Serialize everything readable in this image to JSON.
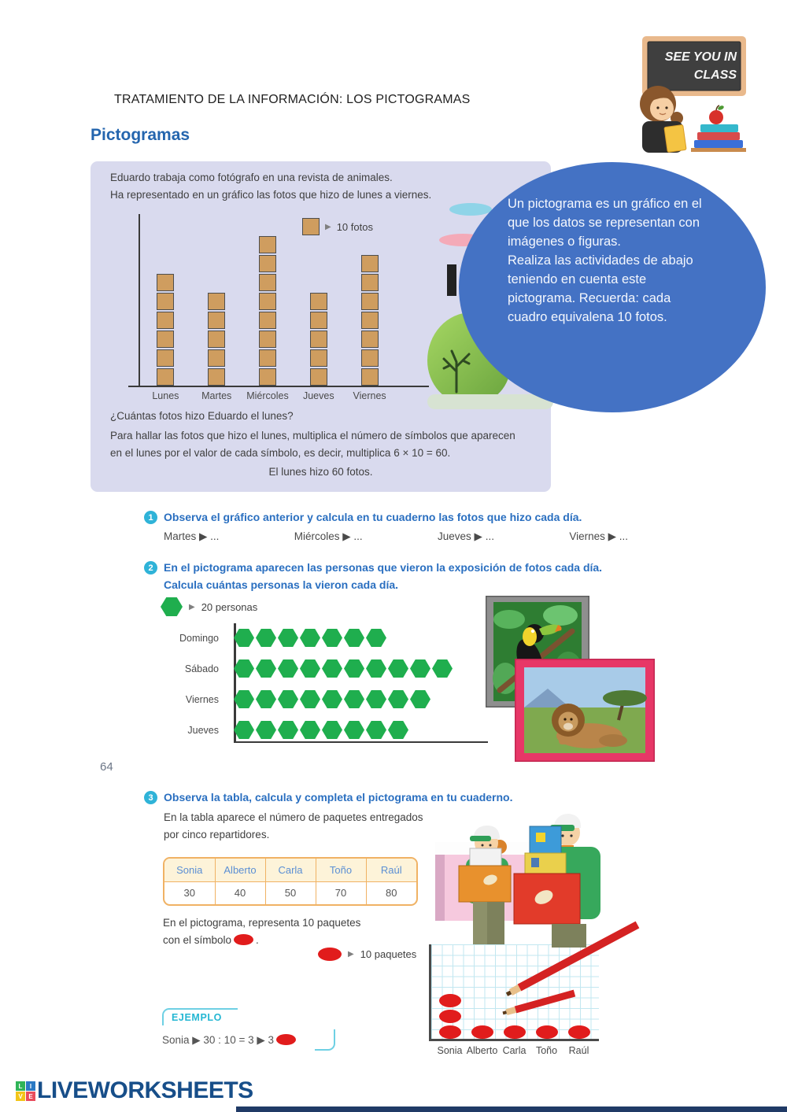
{
  "header": {
    "title": "TRATAMIENTO DE LA INFORMACIÓN: LOS PICTOGRAMAS",
    "section_heading": "Pictogramas",
    "page_number": "64"
  },
  "badge": {
    "line1": "SEE YOU IN",
    "line2": "CLASS"
  },
  "intro_panel": {
    "line1": "Eduardo trabaja como fotógrafo en una revista de animales.",
    "line2": "Ha representado en un gráfico las fotos que hizo de lunes a viernes.",
    "question": "¿Cuántas fotos hizo Eduardo el lunes?",
    "explain1": "Para hallar las fotos que hizo el lunes, multiplica el número de símbolos que aparecen",
    "explain2": "en el lunes por el valor de cada símbolo, es decir, multiplica 6 × 10 = 60.",
    "answer": "El lunes hizo 60 fotos."
  },
  "bubble": {
    "text1": "Un pictograma es un gráfico en el que los datos se representan con imágenes o figuras.",
    "text2": "Realiza las actividades de abajo teniendo en cuenta este pictograma. Recuerda: cada cuadro equivalena 10 fotos.",
    "color": "#4472c4"
  },
  "chart_data": [
    {
      "type": "pictogram",
      "orientation": "columns",
      "title": "Fotos que hizo Eduardo de lunes a viernes",
      "symbol": "tan-square",
      "symbol_color": "#cf9d5f",
      "unit_value": 10,
      "unit_label": "10 fotos",
      "categories": [
        "Lunes",
        "Martes",
        "Miércoles",
        "Jueves",
        "Viernes"
      ],
      "symbol_counts": [
        6,
        5,
        8,
        5,
        7
      ],
      "values": [
        60,
        50,
        80,
        50,
        70
      ]
    },
    {
      "type": "pictogram",
      "orientation": "rows",
      "title": "Personas que vieron la exposición de fotos cada día",
      "symbol": "green-hexagon",
      "symbol_color": "#1fae4e",
      "unit_value": 20,
      "unit_label": "20 personas",
      "categories": [
        "Domingo",
        "Sábado",
        "Viernes",
        "Jueves"
      ],
      "symbol_counts": [
        7,
        10,
        9,
        8
      ],
      "values": [
        140,
        200,
        180,
        160
      ]
    },
    {
      "type": "pictogram",
      "orientation": "columns-on-grid",
      "title": "Paquetes entregados por cinco repartidores",
      "symbol": "red-oval",
      "symbol_color": "#e11c1c",
      "unit_value": 10,
      "unit_label": "10 paquetes",
      "categories": [
        "Sonia",
        "Alberto",
        "Carla",
        "Toño",
        "Raúl"
      ],
      "symbol_counts": [
        3,
        1,
        1,
        1,
        1
      ],
      "values": [
        30,
        10,
        10,
        10,
        10
      ]
    }
  ],
  "q1": {
    "number": "1",
    "text": "Observa el gráfico anterior y calcula en tu cuaderno las fotos que hizo cada día.",
    "items": [
      "Martes ▶ ...",
      "Miércoles ▶ ...",
      "Jueves ▶ ...",
      "Viernes ▶ ..."
    ]
  },
  "q2": {
    "number": "2",
    "line1": "En el pictograma aparecen las personas que vieron la exposición de fotos cada día.",
    "line2": "Calcula cuántas personas la vieron cada día."
  },
  "q3": {
    "number": "3",
    "text": "Observa la tabla, calcula y completa el pictograma en tu cuaderno.",
    "sub1": "En la tabla aparece el número de paquetes entregados",
    "sub2": "por cinco repartidores."
  },
  "table": {
    "headers": [
      "Sonia",
      "Alberto",
      "Carla",
      "Toño",
      "Raúl"
    ],
    "values": [
      "30",
      "40",
      "50",
      "70",
      "80"
    ]
  },
  "pictogram3_text": {
    "inst1": "En el pictograma, representa 10 paquetes",
    "inst2": "con el símbolo",
    "period": "."
  },
  "ejemplo": {
    "label": "EJEMPLO",
    "formula": "Sonia ▶ 30 : 10 = 3 ▶ 3"
  },
  "footer": {
    "logo_text": "LIVEWORKSHEETS",
    "logo_tiles": [
      "L",
      "I",
      "V",
      "E"
    ]
  }
}
